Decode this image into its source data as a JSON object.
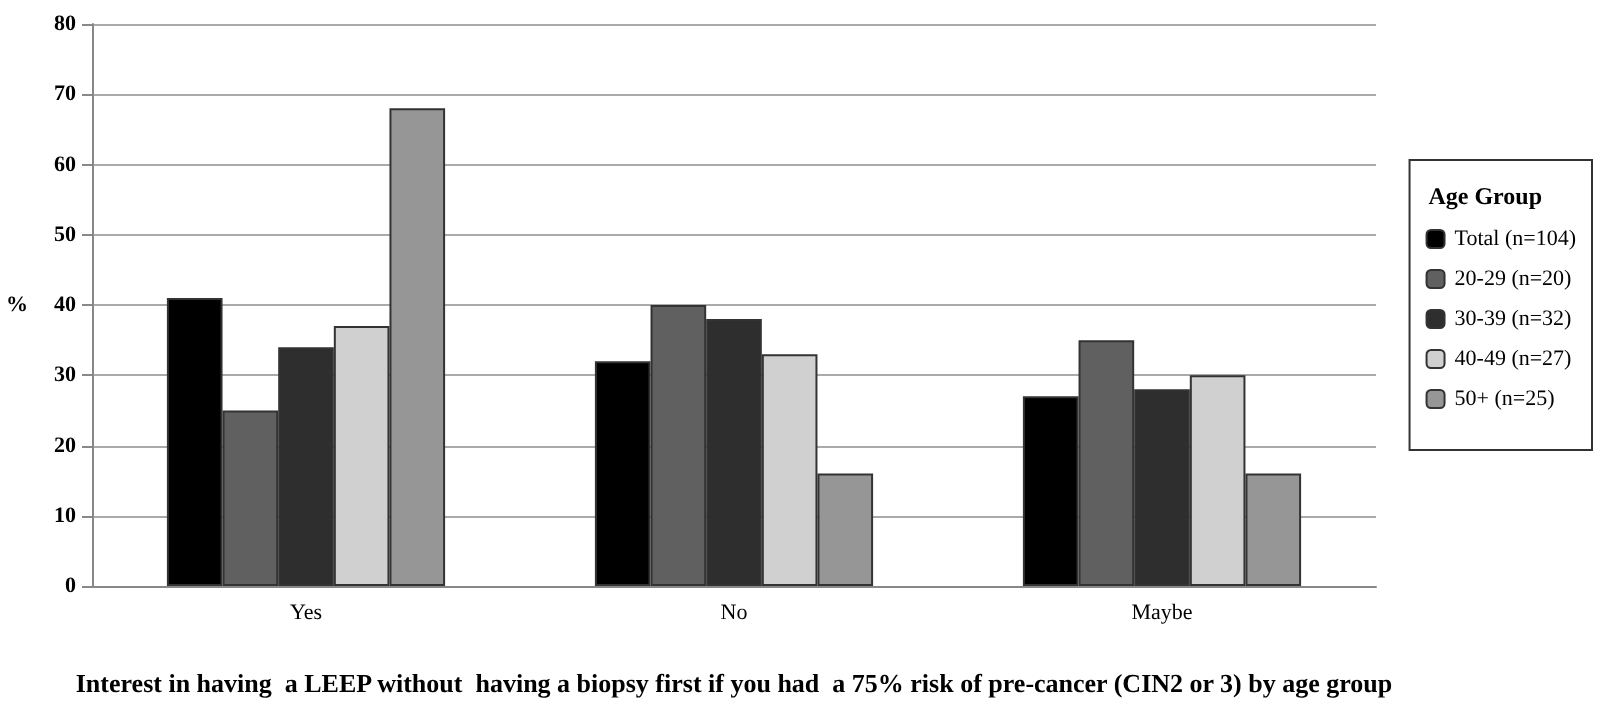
{
  "chart_data": {
    "type": "bar",
    "xlabel": "Interest in having  a LEEP without  having a biopsy first if you had  a 75% risk of pre-cancer (CIN2 or 3) by age group",
    "ylabel": "%",
    "legend_title": "Age Group",
    "categories": [
      "Yes",
      "No",
      "Maybe"
    ],
    "series": [
      {
        "name": "Total (n=104)",
        "color": "#000000",
        "values": [
          41,
          32,
          27
        ]
      },
      {
        "name": "20-29 (n=20)",
        "color": "#606060",
        "values": [
          25,
          40,
          35
        ]
      },
      {
        "name": "30-39 (n=32)",
        "color": "#2e2e2e",
        "values": [
          34,
          38,
          28
        ]
      },
      {
        "name": "40-49 (n=27)",
        "color": "#d0d0d0",
        "values": [
          37,
          33,
          30
        ]
      },
      {
        "name": "50+ (n=25)",
        "color": "#969696",
        "values": [
          68,
          16,
          16
        ]
      }
    ],
    "ylim": [
      0,
      80
    ],
    "yticks": [
      0,
      10,
      20,
      30,
      40,
      50,
      60,
      70,
      80
    ],
    "grid": "y",
    "legend": "right"
  }
}
